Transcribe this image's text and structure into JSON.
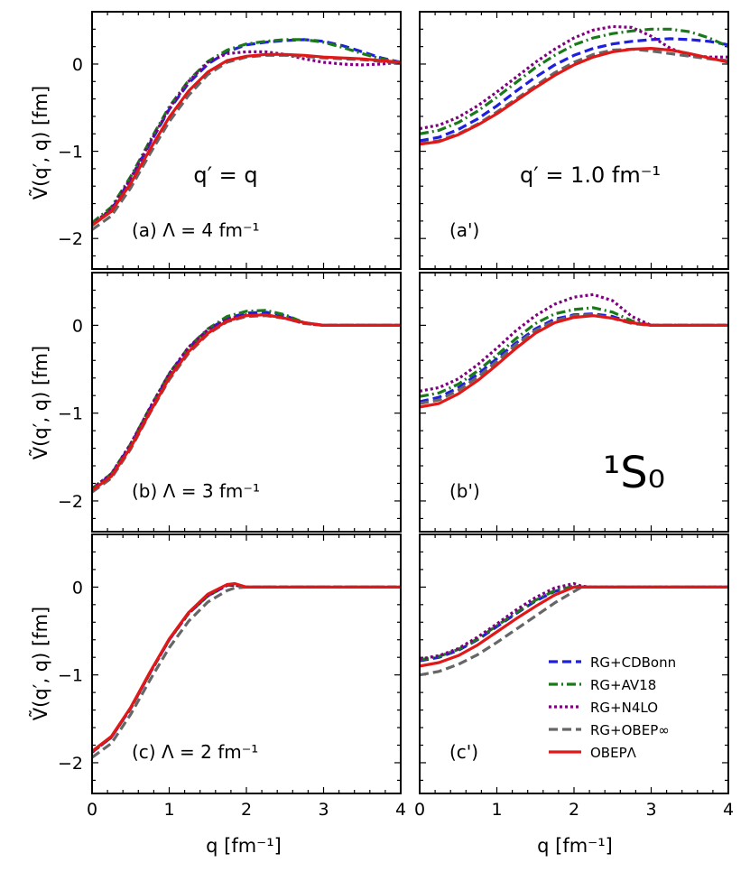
{
  "figure": {
    "state_label": "¹S₀",
    "ylabel": "Ṽ(q′, q) [fm]",
    "xlabel": "q [fm⁻¹]",
    "xticks": [
      "0",
      "1",
      "2",
      "3",
      "4"
    ],
    "yticks": [
      "−2",
      "−1",
      "0"
    ]
  },
  "panels": [
    {
      "label": "(a) Λ = 4 fm⁻¹",
      "qlabel": "q′ = q"
    },
    {
      "label": "(a')",
      "qlabel": "q′ = 1.0 fm⁻¹"
    },
    {
      "label": "(b) Λ = 3 fm⁻¹"
    },
    {
      "label": "(b')"
    },
    {
      "label": "(c) Λ = 2 fm⁻¹"
    },
    {
      "label": "(c')"
    }
  ],
  "legend": [
    {
      "label": "RG+CDBonn",
      "color": "#1f1fe0",
      "dash": "dashed"
    },
    {
      "label": "RG+AV18",
      "color": "#1a7a1a",
      "dash": "dashdot"
    },
    {
      "label": "RG+N4LO",
      "color": "#800080",
      "dash": "dotted"
    },
    {
      "label": "RG+OBEP∞",
      "color": "#666666",
      "dash": "dashed"
    },
    {
      "label": "OBEPΛ",
      "color": "#e01818",
      "dash": "solid"
    }
  ],
  "chart_data": [
    {
      "type": "line",
      "panel": "a",
      "title": "(a) Λ = 4 fm⁻¹ ; q′ = q",
      "xlabel": "q [fm⁻¹]",
      "ylabel": "Ṽ(q′, q) [fm]",
      "xlim": [
        0,
        4
      ],
      "ylim": [
        -2.35,
        0.6
      ],
      "x": [
        0,
        0.25,
        0.5,
        0.75,
        1.0,
        1.25,
        1.5,
        1.75,
        2.0,
        2.25,
        2.5,
        2.75,
        3.0,
        3.25,
        3.5,
        3.75,
        4.0
      ],
      "series": [
        {
          "name": "RG+CDBonn",
          "values": [
            -1.85,
            -1.67,
            -1.32,
            -0.91,
            -0.52,
            -0.22,
            0.0,
            0.14,
            0.22,
            0.25,
            0.27,
            0.28,
            0.26,
            0.21,
            0.14,
            0.07,
            0.02
          ]
        },
        {
          "name": "RG+AV18",
          "values": [
            -1.82,
            -1.64,
            -1.29,
            -0.88,
            -0.49,
            -0.19,
            0.03,
            0.16,
            0.23,
            0.26,
            0.28,
            0.28,
            0.25,
            0.19,
            0.12,
            0.06,
            0.02
          ]
        },
        {
          "name": "RG+N4LO",
          "values": [
            -1.84,
            -1.66,
            -1.31,
            -0.9,
            -0.51,
            -0.2,
            0.02,
            0.12,
            0.14,
            0.14,
            0.11,
            0.06,
            0.02,
            0.0,
            -0.01,
            0.0,
            0.02
          ]
        },
        {
          "name": "RG+OBEP∞",
          "values": [
            -1.9,
            -1.74,
            -1.42,
            -1.03,
            -0.66,
            -0.36,
            -0.12,
            0.02,
            0.08,
            0.1,
            0.1,
            0.09,
            0.07,
            0.06,
            0.05,
            0.03,
            0.01
          ]
        },
        {
          "name": "OBEPΛ",
          "values": [
            -1.85,
            -1.69,
            -1.37,
            -0.98,
            -0.61,
            -0.31,
            -0.09,
            0.04,
            0.09,
            0.11,
            0.11,
            0.1,
            0.08,
            0.07,
            0.06,
            0.04,
            0.02
          ]
        }
      ]
    },
    {
      "type": "line",
      "panel": "a'",
      "title": "(a') q′ = 1.0 fm⁻¹",
      "xlabel": "q [fm⁻¹]",
      "ylabel": "",
      "xlim": [
        0,
        4
      ],
      "ylim": [
        -2.35,
        0.6
      ],
      "x": [
        0,
        0.25,
        0.5,
        0.75,
        1.0,
        1.25,
        1.5,
        1.75,
        2.0,
        2.25,
        2.5,
        2.75,
        3.0,
        3.25,
        3.5,
        3.75,
        4.0
      ],
      "series": [
        {
          "name": "RG+CDBonn",
          "values": [
            -0.88,
            -0.84,
            -0.75,
            -0.63,
            -0.48,
            -0.31,
            -0.15,
            -0.01,
            0.1,
            0.18,
            0.23,
            0.26,
            0.28,
            0.29,
            0.28,
            0.26,
            0.22
          ]
        },
        {
          "name": "RG+AV18",
          "values": [
            -0.8,
            -0.76,
            -0.67,
            -0.54,
            -0.38,
            -0.21,
            -0.04,
            0.1,
            0.22,
            0.3,
            0.35,
            0.38,
            0.4,
            0.4,
            0.37,
            0.3,
            0.2
          ]
        },
        {
          "name": "RG+N4LO",
          "values": [
            -0.74,
            -0.7,
            -0.61,
            -0.48,
            -0.32,
            -0.15,
            0.02,
            0.17,
            0.3,
            0.39,
            0.43,
            0.42,
            0.32,
            0.18,
            0.1,
            0.08,
            0.08
          ]
        },
        {
          "name": "RG+OBEP∞",
          "values": [
            -0.91,
            -0.88,
            -0.8,
            -0.69,
            -0.55,
            -0.4,
            -0.25,
            -0.1,
            0.02,
            0.11,
            0.16,
            0.17,
            0.15,
            0.12,
            0.09,
            0.06,
            0.04
          ]
        },
        {
          "name": "OBEPΛ",
          "values": [
            -0.92,
            -0.89,
            -0.81,
            -0.7,
            -0.57,
            -0.42,
            -0.27,
            -0.13,
            -0.01,
            0.08,
            0.14,
            0.17,
            0.18,
            0.16,
            0.12,
            0.07,
            0.02
          ]
        }
      ]
    },
    {
      "type": "line",
      "panel": "b",
      "title": "(b) Λ = 3 fm⁻¹",
      "xlabel": "q [fm⁻¹]",
      "ylabel": "Ṽ(q′, q) [fm]",
      "xlim": [
        0,
        4
      ],
      "ylim": [
        -2.35,
        0.6
      ],
      "x": [
        0,
        0.25,
        0.5,
        0.75,
        1.0,
        1.25,
        1.5,
        1.75,
        2.0,
        2.25,
        2.5,
        2.75,
        3.0,
        3.25,
        3.5,
        3.75,
        4.0
      ],
      "series": [
        {
          "name": "RG+CDBonn",
          "values": [
            -1.87,
            -1.7,
            -1.36,
            -0.95,
            -0.56,
            -0.26,
            -0.05,
            0.08,
            0.14,
            0.15,
            0.11,
            0.03,
            0.0,
            0.0,
            0.0,
            0.0,
            0.0
          ]
        },
        {
          "name": "RG+AV18",
          "values": [
            -1.86,
            -1.69,
            -1.35,
            -0.94,
            -0.55,
            -0.25,
            -0.04,
            0.1,
            0.16,
            0.17,
            0.12,
            0.03,
            0.0,
            0.0,
            0.0,
            0.0,
            0.0
          ]
        },
        {
          "name": "RG+N4LO",
          "values": [
            -1.86,
            -1.69,
            -1.35,
            -0.94,
            -0.55,
            -0.25,
            -0.05,
            0.07,
            0.12,
            0.12,
            0.08,
            0.02,
            0.0,
            0.0,
            0.0,
            0.0,
            0.0
          ]
        },
        {
          "name": "RG+OBEP∞",
          "values": [
            -1.9,
            -1.74,
            -1.41,
            -1.0,
            -0.62,
            -0.32,
            -0.1,
            0.04,
            0.1,
            0.11,
            0.08,
            0.02,
            0.0,
            0.0,
            0.0,
            0.0,
            0.0
          ]
        },
        {
          "name": "OBEPΛ",
          "values": [
            -1.88,
            -1.72,
            -1.39,
            -0.99,
            -0.6,
            -0.3,
            -0.09,
            0.05,
            0.11,
            0.12,
            0.08,
            0.03,
            0.0,
            0.0,
            0.0,
            0.0,
            0.0
          ]
        }
      ]
    },
    {
      "type": "line",
      "panel": "b'",
      "title": "(b')",
      "xlabel": "q [fm⁻¹]",
      "ylabel": "",
      "xlim": [
        0,
        4
      ],
      "ylim": [
        -2.35,
        0.6
      ],
      "x": [
        0,
        0.25,
        0.5,
        0.75,
        1.0,
        1.25,
        1.5,
        1.75,
        2.0,
        2.25,
        2.5,
        2.75,
        3.0,
        3.25,
        3.5,
        3.75,
        4.0
      ],
      "series": [
        {
          "name": "RG+CDBonn",
          "values": [
            -0.87,
            -0.82,
            -0.71,
            -0.56,
            -0.38,
            -0.2,
            -0.04,
            0.07,
            0.12,
            0.13,
            0.1,
            0.03,
            0.0,
            0.0,
            0.0,
            0.0,
            0.0
          ]
        },
        {
          "name": "RG+AV18",
          "values": [
            -0.81,
            -0.77,
            -0.67,
            -0.52,
            -0.34,
            -0.15,
            0.02,
            0.13,
            0.18,
            0.2,
            0.15,
            0.05,
            0.0,
            0.0,
            0.0,
            0.0,
            0.0
          ]
        },
        {
          "name": "RG+N4LO",
          "values": [
            -0.75,
            -0.71,
            -0.61,
            -0.45,
            -0.26,
            -0.06,
            0.11,
            0.24,
            0.32,
            0.35,
            0.28,
            0.1,
            0.0,
            0.0,
            0.0,
            0.0,
            0.0
          ]
        },
        {
          "name": "RG+OBEP∞",
          "values": [
            -0.89,
            -0.85,
            -0.74,
            -0.59,
            -0.41,
            -0.22,
            -0.06,
            0.05,
            0.11,
            0.12,
            0.08,
            0.02,
            0.0,
            0.0,
            0.0,
            0.0,
            0.0
          ]
        },
        {
          "name": "OBEPΛ",
          "values": [
            -0.93,
            -0.89,
            -0.78,
            -0.63,
            -0.45,
            -0.26,
            -0.09,
            0.03,
            0.09,
            0.11,
            0.08,
            0.03,
            0.0,
            0.0,
            0.0,
            0.0,
            0.0
          ]
        }
      ]
    },
    {
      "type": "line",
      "panel": "c",
      "title": "(c) Λ = 2 fm⁻¹",
      "xlabel": "q [fm⁻¹]",
      "ylabel": "Ṽ(q′, q) [fm]",
      "xlim": [
        0,
        4
      ],
      "ylim": [
        -2.35,
        0.6
      ],
      "x": [
        0,
        0.25,
        0.5,
        0.75,
        1.0,
        1.25,
        1.5,
        1.75,
        1.85,
        2.0,
        2.25,
        2.5,
        2.75,
        3.0,
        3.25,
        3.5,
        3.75,
        4.0
      ],
      "series": [
        {
          "name": "RG+CDBonn",
          "values": [
            -1.88,
            -1.71,
            -1.38,
            -0.98,
            -0.6,
            -0.3,
            -0.1,
            0.02,
            0.02,
            0.0,
            0.0,
            0.0,
            0.0,
            0.0,
            0.0,
            0.0,
            0.0,
            0.0
          ]
        },
        {
          "name": "RG+AV18",
          "values": [
            -1.88,
            -1.71,
            -1.38,
            -0.98,
            -0.6,
            -0.3,
            -0.1,
            0.02,
            0.02,
            0.0,
            0.0,
            0.0,
            0.0,
            0.0,
            0.0,
            0.0,
            0.0,
            0.0
          ]
        },
        {
          "name": "RG+N4LO",
          "values": [
            -1.88,
            -1.71,
            -1.38,
            -0.98,
            -0.6,
            -0.3,
            -0.1,
            0.02,
            0.02,
            0.0,
            0.0,
            0.0,
            0.0,
            0.0,
            0.0,
            0.0,
            0.0,
            0.0
          ]
        },
        {
          "name": "RG+OBEP∞",
          "values": [
            -1.94,
            -1.78,
            -1.45,
            -1.06,
            -0.69,
            -0.39,
            -0.17,
            -0.04,
            -0.01,
            0.0,
            0.0,
            0.0,
            0.0,
            0.0,
            0.0,
            0.0,
            0.0,
            0.0
          ]
        },
        {
          "name": "OBEPΛ",
          "values": [
            -1.87,
            -1.7,
            -1.37,
            -0.97,
            -0.59,
            -0.29,
            -0.08,
            0.03,
            0.04,
            0.0,
            0.0,
            0.0,
            0.0,
            0.0,
            0.0,
            0.0,
            0.0,
            0.0
          ]
        }
      ]
    },
    {
      "type": "line",
      "panel": "c'",
      "title": "(c')",
      "xlabel": "q [fm⁻¹]",
      "ylabel": "",
      "xlim": [
        0,
        4
      ],
      "ylim": [
        -2.35,
        0.6
      ],
      "x": [
        0,
        0.25,
        0.5,
        0.75,
        1.0,
        1.25,
        1.5,
        1.75,
        2.0,
        2.1,
        2.25,
        2.5,
        2.75,
        3.0,
        3.25,
        3.5,
        3.75,
        4.0
      ],
      "series": [
        {
          "name": "RG+CDBonn",
          "values": [
            -0.84,
            -0.8,
            -0.72,
            -0.6,
            -0.45,
            -0.3,
            -0.16,
            -0.05,
            0.01,
            0.0,
            0.0,
            0.0,
            0.0,
            0.0,
            0.0,
            0.0,
            0.0,
            0.0
          ]
        },
        {
          "name": "RG+AV18",
          "values": [
            -0.83,
            -0.79,
            -0.71,
            -0.59,
            -0.44,
            -0.29,
            -0.15,
            -0.04,
            0.01,
            0.0,
            0.0,
            0.0,
            0.0,
            0.0,
            0.0,
            0.0,
            0.0,
            0.0
          ]
        },
        {
          "name": "RG+N4LO",
          "values": [
            -0.82,
            -0.78,
            -0.7,
            -0.57,
            -0.42,
            -0.26,
            -0.12,
            -0.01,
            0.04,
            0.01,
            0.0,
            0.0,
            0.0,
            0.0,
            0.0,
            0.0,
            0.0,
            0.0
          ]
        },
        {
          "name": "RG+OBEP∞",
          "values": [
            -1.0,
            -0.96,
            -0.88,
            -0.77,
            -0.63,
            -0.48,
            -0.33,
            -0.18,
            -0.05,
            0.0,
            0.0,
            0.0,
            0.0,
            0.0,
            0.0,
            0.0,
            0.0,
            0.0
          ]
        },
        {
          "name": "OBEPΛ",
          "values": [
            -0.9,
            -0.86,
            -0.78,
            -0.66,
            -0.51,
            -0.36,
            -0.22,
            -0.09,
            0.0,
            0.0,
            0.0,
            0.0,
            0.0,
            0.0,
            0.0,
            0.0,
            0.0,
            0.0
          ]
        }
      ]
    }
  ]
}
